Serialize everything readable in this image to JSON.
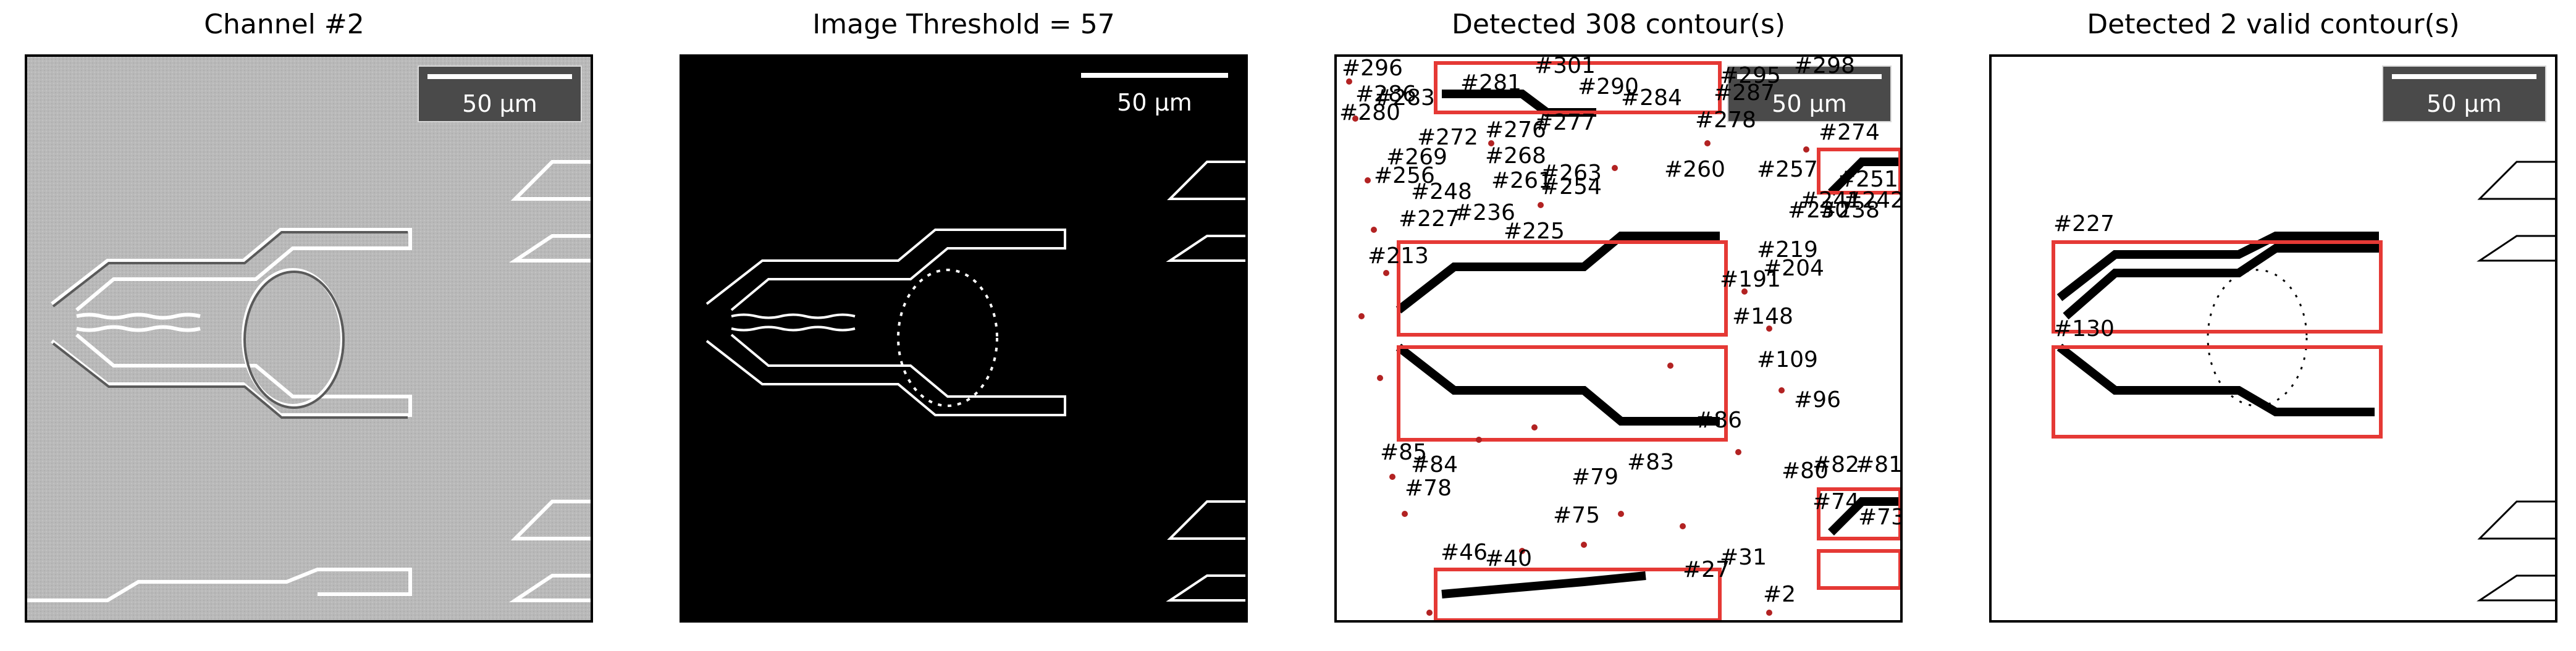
{
  "panels": {
    "p1": {
      "title": "Channel #2",
      "scale": "50 µm"
    },
    "p2": {
      "title": "Image Threshold = 57",
      "scale": "50 µm"
    },
    "p3": {
      "title": "Detected 308 contour(s)",
      "scale": "50 µm",
      "labels": [
        "#296",
        "#286",
        "#280",
        "#272",
        "#276",
        "#277",
        "#269",
        "#268",
        "#263",
        "#261",
        "#256",
        "#254",
        "#248",
        "#236",
        "#227",
        "#225",
        "#213",
        "#219",
        "#204",
        "#191",
        "#148",
        "#109",
        "#96",
        "#86",
        "#85",
        "#84",
        "#78",
        "#83",
        "#79",
        "#82",
        "#81",
        "#80",
        "#75",
        "#74",
        "#73",
        "#46",
        "#40",
        "#31",
        "#27",
        "#2",
        "#230",
        "#274",
        "#251",
        "#242",
        "#238",
        "#241",
        "#257",
        "#260",
        "#278",
        "#287",
        "#295",
        "#298",
        "#290",
        "#284",
        "#283",
        "#281",
        "#301"
      ]
    },
    "p4": {
      "title": "Detected 2 valid contour(s)",
      "scale": "50 µm",
      "labels": [
        "#227",
        "#130"
      ]
    }
  },
  "colors": {
    "accent": "#e53935",
    "dot": "#b22222"
  }
}
